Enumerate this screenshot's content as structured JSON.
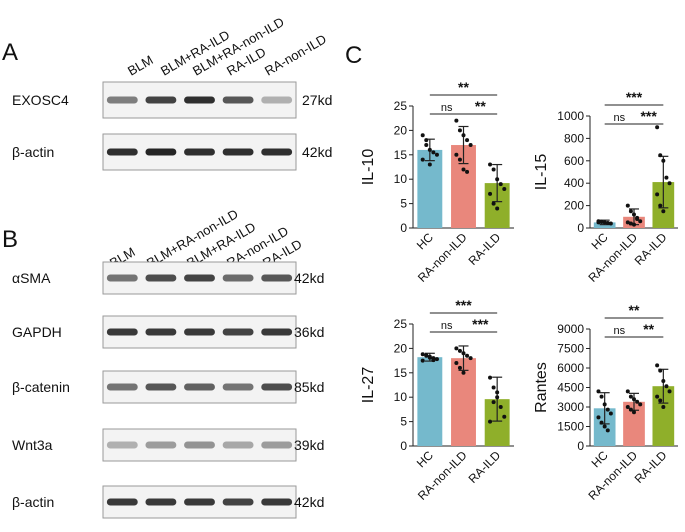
{
  "panels": {
    "a": "A",
    "b": "B",
    "c": "C"
  },
  "panel_a": {
    "lanes": [
      "BLM",
      "BLM+RA-ILD",
      "BLM+RA-non-ILD",
      "RA-ILD",
      "RA-non-ILD"
    ],
    "blots": [
      {
        "name": "EXOSC4",
        "size": "27kd",
        "intensity": [
          0.55,
          0.85,
          0.95,
          0.75,
          0.3
        ]
      },
      {
        "name": "β-actin",
        "size": "42kd",
        "intensity": [
          0.95,
          1.0,
          0.95,
          0.95,
          0.95
        ]
      }
    ]
  },
  "panel_b": {
    "lanes": [
      "BLM",
      "BLM+RA-non-ILD",
      "BLM+RA-ILD",
      "RA-non-ILD",
      "RA-ILD"
    ],
    "blots": [
      {
        "name": "αSMA",
        "size": "42kd",
        "intensity": [
          0.6,
          0.8,
          0.85,
          0.65,
          0.75
        ]
      },
      {
        "name": "GAPDH",
        "size": "36kd",
        "intensity": [
          0.9,
          0.9,
          0.9,
          0.85,
          0.9
        ]
      },
      {
        "name": "β-catenin",
        "size": "85kd",
        "intensity": [
          0.6,
          0.75,
          0.7,
          0.6,
          0.8
        ]
      },
      {
        "name": "Wnt3a",
        "size": "39kd",
        "intensity": [
          0.3,
          0.4,
          0.45,
          0.35,
          0.4
        ]
      },
      {
        "name": "β-actin",
        "size": "42kd",
        "intensity": [
          0.9,
          0.9,
          0.9,
          0.85,
          0.9
        ]
      }
    ]
  },
  "colors": {
    "HC": "#75b9cc",
    "RA-non-ILD": "#e9877c",
    "RA-ILD": "#8faf2a"
  },
  "chart_data": [
    {
      "type": "bar",
      "ylabel": "IL-10",
      "ylim": [
        0,
        25
      ],
      "yticks": [
        0,
        5,
        10,
        15,
        20,
        25
      ],
      "categories": [
        "HC",
        "RA-non-ILD",
        "RA-ILD"
      ],
      "values": [
        16,
        17,
        9.2
      ],
      "sd": [
        2.2,
        3.8,
        3.8
      ],
      "points": [
        [
          19,
          18,
          16,
          15.5,
          15,
          14,
          17,
          13
        ],
        [
          22,
          20,
          19,
          18,
          17,
          15,
          14,
          12,
          11.5
        ],
        [
          13,
          12,
          10,
          9,
          8,
          7,
          5,
          4
        ]
      ],
      "sig": [
        {
          "from": 0,
          "to": 2,
          "label": "**"
        },
        {
          "from": 0,
          "to": 1,
          "label": "ns"
        },
        {
          "from": 1,
          "to": 2,
          "label": "**"
        }
      ]
    },
    {
      "type": "bar",
      "ylabel": "IL-15",
      "ylim": [
        0,
        1000
      ],
      "yticks": [
        0,
        200,
        400,
        600,
        800,
        1000
      ],
      "categories": [
        "HC",
        "RA-non-ILD",
        "RA-ILD"
      ],
      "values": [
        50,
        100,
        410
      ],
      "sd": [
        20,
        70,
        230
      ],
      "points": [
        [
          60,
          55,
          50,
          45,
          40,
          50,
          55
        ],
        [
          200,
          150,
          120,
          90,
          60,
          50,
          40,
          30,
          80
        ],
        [
          900,
          650,
          600,
          450,
          400,
          300,
          200,
          150
        ]
      ],
      "sig": [
        {
          "from": 0,
          "to": 2,
          "label": "***"
        },
        {
          "from": 1,
          "to": 2,
          "label": "***"
        },
        {
          "from": 0,
          "to": 1,
          "label": "ns"
        }
      ]
    },
    {
      "type": "bar",
      "ylabel": "IL-27",
      "ylim": [
        0,
        25
      ],
      "yticks": [
        0,
        5,
        10,
        15,
        20,
        25
      ],
      "categories": [
        "HC",
        "RA-non-ILD",
        "RA-ILD"
      ],
      "values": [
        18.2,
        18,
        9.6
      ],
      "sd": [
        0.8,
        2.5,
        4.5
      ],
      "points": [
        [
          18.8,
          18.5,
          18.3,
          18,
          17.8,
          17.5,
          18.6,
          18.1,
          17.6
        ],
        [
          20,
          19.5,
          19,
          18.5,
          18,
          17,
          16,
          15
        ],
        [
          14,
          12,
          10,
          8,
          6,
          5,
          9,
          11
        ]
      ],
      "sig": [
        {
          "from": 0,
          "to": 2,
          "label": "***"
        },
        {
          "from": 0,
          "to": 1,
          "label": "ns"
        },
        {
          "from": 1,
          "to": 2,
          "label": "***"
        }
      ]
    },
    {
      "type": "bar",
      "ylabel": "Rantes",
      "ylim": [
        0,
        9000
      ],
      "yticks": [
        0,
        1500,
        3000,
        4500,
        6000,
        7500,
        9000
      ],
      "categories": [
        "HC",
        "RA-non-ILD",
        "RA-ILD"
      ],
      "values": [
        2900,
        3400,
        4600
      ],
      "sd": [
        1200,
        650,
        1300
      ],
      "points": [
        [
          4200,
          3800,
          3200,
          2800,
          2500,
          2200,
          1800,
          1500,
          1200
        ],
        [
          4200,
          3800,
          3600,
          3400,
          3200,
          3000,
          2800,
          2600
        ],
        [
          6200,
          5800,
          5000,
          4600,
          4200,
          3800,
          3500,
          3000
        ]
      ],
      "sig": [
        {
          "from": 0,
          "to": 2,
          "label": "**"
        },
        {
          "from": 1,
          "to": 2,
          "label": "**"
        },
        {
          "from": 0,
          "to": 1,
          "label": "ns"
        }
      ]
    }
  ]
}
